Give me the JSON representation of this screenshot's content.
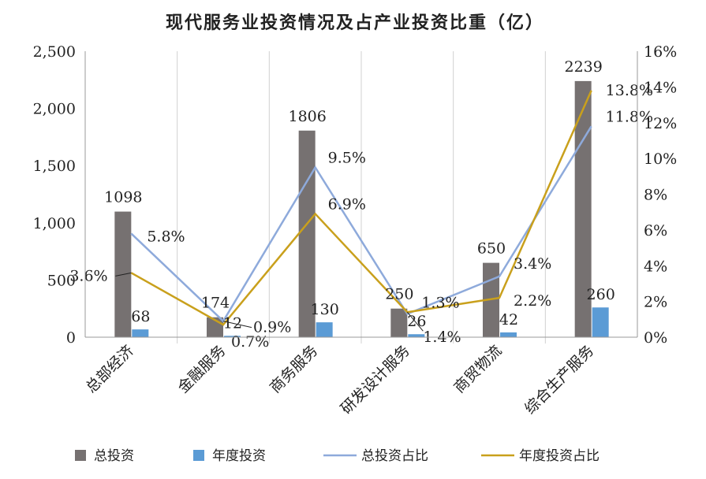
{
  "chart_data": {
    "type": "bar",
    "title": "现代服务业投资情况及占产业投资比重（亿）",
    "categories": [
      "总部经济",
      "金融服务",
      "商务服务",
      "研发设计服务",
      "商贸物流",
      "综合生产服务"
    ],
    "series": [
      {
        "name": "总投资",
        "type": "bar",
        "axis": "left",
        "color": "#767171",
        "values": [
          1098,
          174,
          1806,
          250,
          650,
          2239
        ],
        "labels": [
          "1098",
          "174",
          "1806",
          "250",
          "650",
          "2239"
        ]
      },
      {
        "name": "年度投资",
        "type": "bar",
        "axis": "left",
        "color": "#5b9bd5",
        "values": [
          68,
          12,
          130,
          26,
          42,
          260
        ],
        "labels": [
          "68",
          "12",
          "130",
          "26",
          "42",
          "260"
        ]
      },
      {
        "name": "总投资占比",
        "type": "line",
        "axis": "right",
        "color": "#8eaadb",
        "values": [
          5.8,
          0.9,
          9.5,
          1.3,
          3.4,
          11.8
        ],
        "labels": [
          "5.8%",
          "0.9%",
          "9.5%",
          "1.3%",
          "3.4%",
          "11.8%"
        ]
      },
      {
        "name": "年度投资占比",
        "type": "line",
        "axis": "right",
        "color": "#c9a01c",
        "values": [
          3.6,
          0.7,
          6.9,
          1.4,
          2.2,
          13.8
        ],
        "labels": [
          "3.6%",
          "0.7%",
          "6.9%",
          "1.4%",
          "2.2%",
          "13.8%"
        ]
      }
    ],
    "y_left": {
      "range": [
        0,
        2500
      ],
      "ticks": [
        "0",
        "500",
        "1,000",
        "1,500",
        "2,000",
        "2,500"
      ],
      "values": [
        0,
        500,
        1000,
        1500,
        2000,
        2500
      ]
    },
    "y_right": {
      "range": [
        0,
        16
      ],
      "ticks": [
        "0%",
        "2%",
        "4%",
        "6%",
        "8%",
        "10%",
        "12%",
        "14%",
        "16%"
      ],
      "values": [
        0,
        2,
        4,
        6,
        8,
        10,
        12,
        14,
        16
      ]
    },
    "grid": "vertical category separators",
    "legend": "bottom"
  }
}
